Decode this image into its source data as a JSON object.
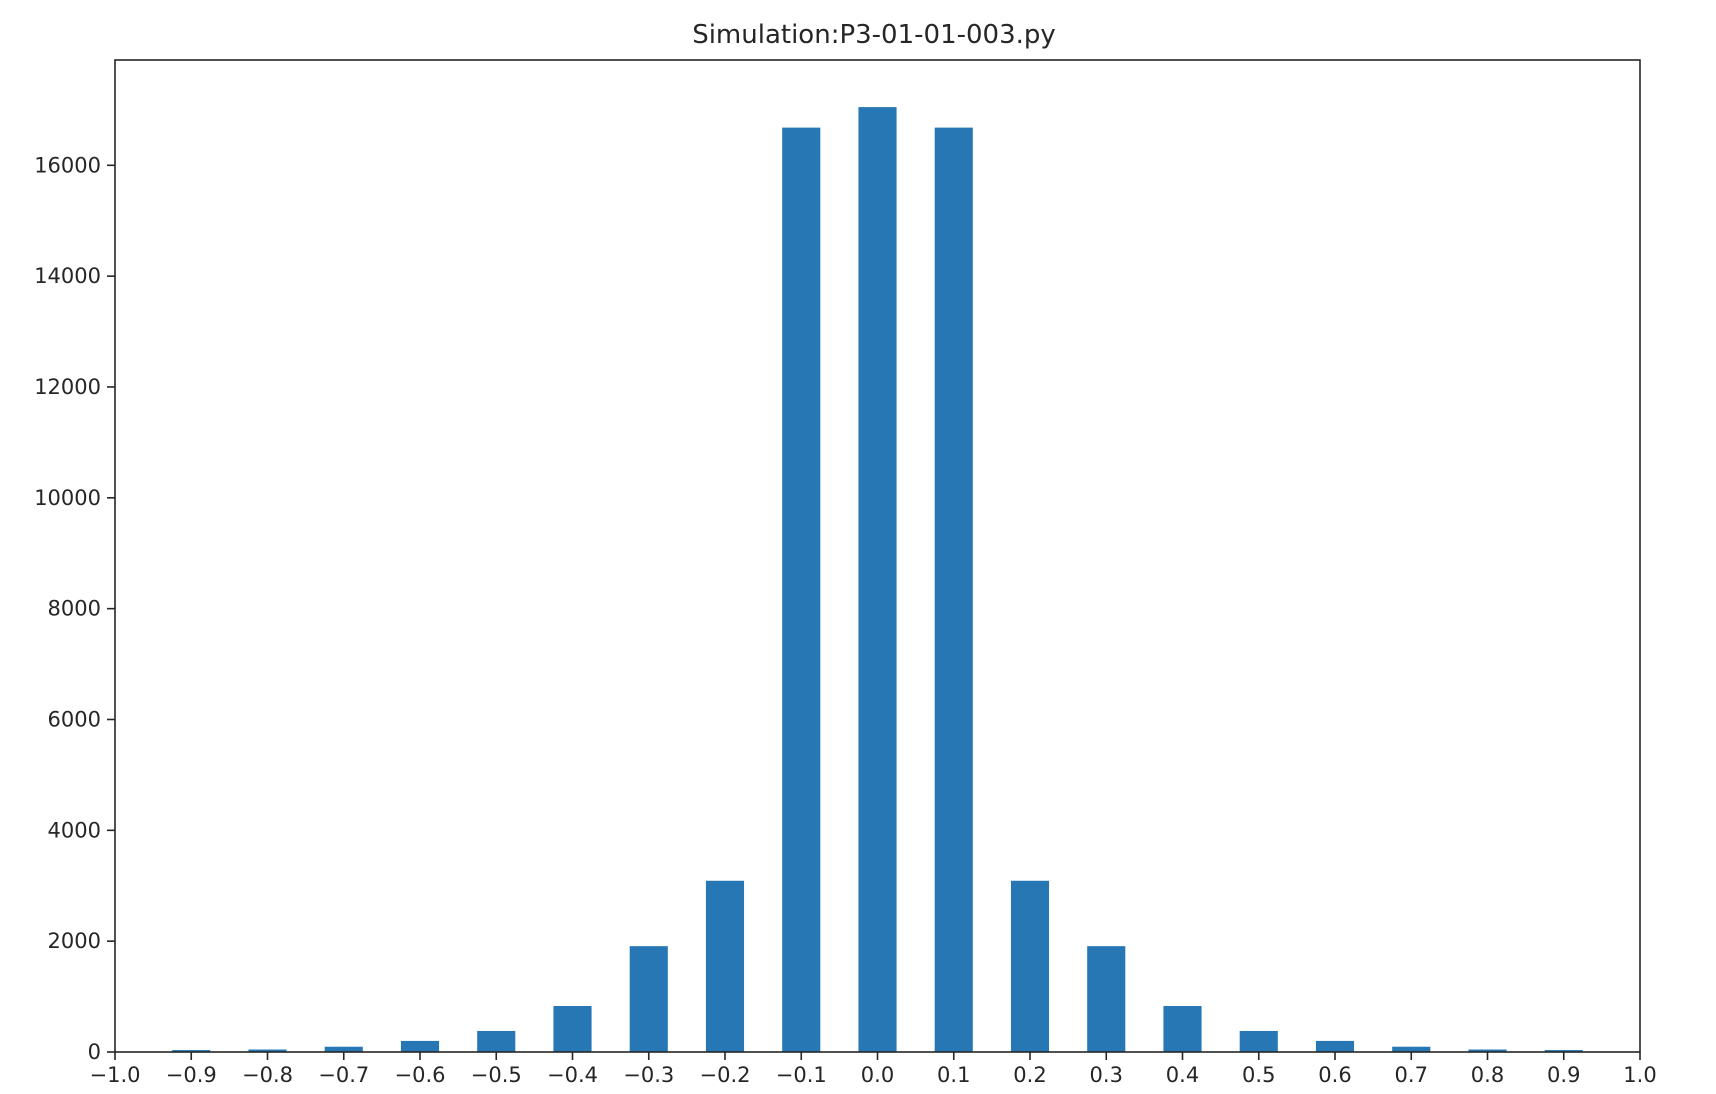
{
  "chart_data": {
    "type": "bar",
    "title": "Simulation:P3-01-01-003.py",
    "xlabel": "",
    "ylabel": "",
    "x": [
      -0.9,
      -0.8,
      -0.7,
      -0.6,
      -0.5,
      -0.4,
      -0.3,
      -0.2,
      -0.1,
      0.0,
      0.1,
      0.2,
      0.3,
      0.4,
      0.5,
      0.6,
      0.7,
      0.8,
      0.9
    ],
    "values": [
      35,
      45,
      95,
      200,
      380,
      830,
      1910,
      3090,
      16680,
      17050,
      16680,
      3090,
      1910,
      830,
      380,
      200,
      95,
      45,
      35
    ],
    "bar_width": 0.05,
    "xlim": [
      -1.0,
      1.0
    ],
    "ylim": [
      0,
      17900
    ],
    "x_ticks": [
      -1.0,
      -0.9,
      -0.8,
      -0.7,
      -0.6,
      -0.5,
      -0.4,
      -0.3,
      -0.2,
      -0.1,
      0.0,
      0.1,
      0.2,
      0.3,
      0.4,
      0.5,
      0.6,
      0.7,
      0.8,
      0.9,
      1.0
    ],
    "x_tick_labels": [
      "−1.0",
      "−0.9",
      "−0.8",
      "−0.7",
      "−0.6",
      "−0.5",
      "−0.4",
      "−0.3",
      "−0.2",
      "−0.1",
      "0.0",
      "0.1",
      "0.2",
      "0.3",
      "0.4",
      "0.5",
      "0.6",
      "0.7",
      "0.8",
      "0.9",
      "1.0"
    ],
    "y_ticks": [
      0,
      2000,
      4000,
      6000,
      8000,
      10000,
      12000,
      14000,
      16000
    ],
    "y_tick_labels": [
      "0",
      "2000",
      "4000",
      "6000",
      "8000",
      "10000",
      "12000",
      "14000",
      "16000"
    ],
    "bar_color": "#2677b4",
    "grid": false,
    "legend": "none"
  }
}
